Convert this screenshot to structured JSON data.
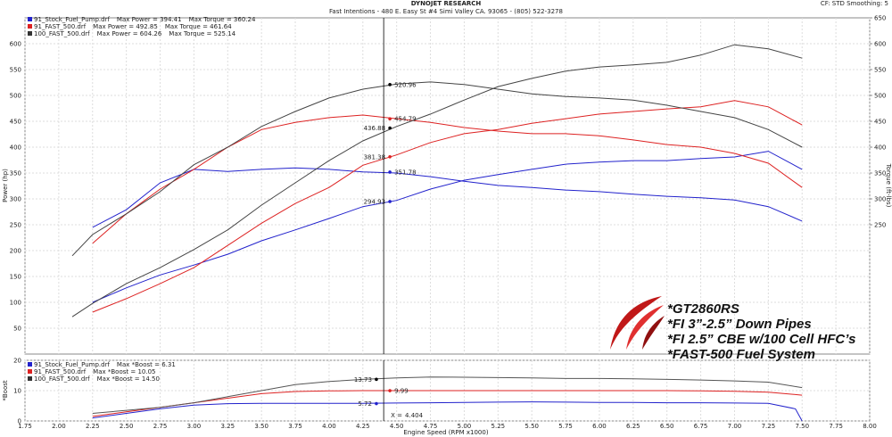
{
  "header": {
    "title": "DYNOJET RESEARCH",
    "address": "Fast Intentions - 480 E. Easy St #4 Simi Valley CA. 93065 - (805) 522-3278",
    "settings": "CF: STD  Smoothing: 5"
  },
  "notes": [
    "*GT2860RS",
    "*FI 3”-2.5” Down Pipes",
    "*FI 2.5” CBE w/100 Cell HFC’s",
    "*FAST-500 Fuel System"
  ],
  "chart_data": [
    {
      "type": "line",
      "y_label": "Power (hp)",
      "y2_label": "Torque (ft-lbs)",
      "grid": true,
      "xlim": [
        1.75,
        8
      ],
      "ylim": [
        0,
        650
      ],
      "yticks": [
        50,
        100,
        150,
        200,
        250,
        300,
        350,
        400,
        450,
        500,
        550,
        600
      ],
      "y2lim": [
        0,
        650
      ],
      "y2ticks": [
        250,
        300,
        350,
        400,
        450,
        500,
        550,
        600,
        650
      ],
      "legend": [
        {
          "name": "91_Stock_Fuel_Pump.drf",
          "color": "#2222cc",
          "power": "Max Power = 394.41",
          "torque": "Max Torque = 360.24"
        },
        {
          "name": "91_FAST_500.drf",
          "color": "#dd2222",
          "power": "Max Power = 492.85",
          "torque": "Max Torque = 461.64"
        },
        {
          "name": "100_FAST_500.drf",
          "color": "#333333",
          "power": "Max Power = 604.26",
          "torque": "Max Torque = 525.14"
        }
      ],
      "series": [
        {
          "color": "#2222cc",
          "axis": "y2",
          "x": [
            2.25,
            2.5,
            2.75,
            3,
            3.25,
            3.5,
            3.75,
            4,
            4.25,
            4.5,
            4.75,
            5,
            5.25,
            5.5,
            5.75,
            6,
            6.25,
            6.5,
            6.75,
            7,
            7.25,
            7.5
          ],
          "values": [
            245,
            279,
            331,
            357,
            353,
            357,
            360,
            357,
            352,
            350,
            343,
            334,
            326,
            322,
            317,
            314,
            309,
            305,
            302,
            298,
            285,
            257
          ]
        },
        {
          "color": "#2222cc",
          "x": [
            2.25,
            2.5,
            2.75,
            3,
            3.25,
            3.5,
            3.75,
            4,
            4.25,
            4.5,
            4.75,
            5,
            5.25,
            5.5,
            5.75,
            6,
            6.25,
            6.5,
            6.75,
            7,
            7.25,
            7.5
          ],
          "values": [
            100,
            128,
            153,
            172,
            193,
            219,
            240,
            262,
            285,
            297,
            319,
            336,
            347,
            357,
            367,
            371,
            374,
            374,
            378,
            381,
            392,
            357
          ]
        },
        {
          "color": "#dd2222",
          "axis": "y2",
          "x": [
            2.25,
            2.5,
            2.75,
            3,
            3.25,
            3.5,
            3.75,
            4,
            4.25,
            4.5,
            4.75,
            5,
            5.25,
            5.5,
            5.75,
            6,
            6.25,
            6.5,
            6.75,
            7,
            7.25,
            7.5
          ],
          "values": [
            214,
            271,
            319,
            357,
            400,
            434,
            448,
            457,
            462,
            455,
            448,
            438,
            431,
            426,
            426,
            422,
            414,
            405,
            400,
            388,
            369,
            322
          ]
        },
        {
          "color": "#dd2222",
          "x": [
            2.25,
            2.5,
            2.75,
            3,
            3.25,
            3.5,
            3.75,
            4,
            4.25,
            4.5,
            4.75,
            5,
            5.25,
            5.5,
            5.75,
            6,
            6.25,
            6.5,
            6.75,
            7,
            7.25,
            7.5
          ],
          "values": [
            81,
            107,
            136,
            167,
            210,
            253,
            291,
            322,
            365,
            385,
            409,
            426,
            434,
            446,
            455,
            464,
            469,
            474,
            478,
            490,
            478,
            443
          ]
        },
        {
          "color": "#444444",
          "axis": "y2",
          "x": [
            2.1,
            2.25,
            2.5,
            2.75,
            3,
            3.25,
            3.5,
            3.75,
            4,
            4.25,
            4.5,
            4.75,
            5,
            5.25,
            5.5,
            5.75,
            6,
            6.25,
            6.5,
            6.75,
            7,
            7.25,
            7.5
          ],
          "values": [
            190,
            231,
            271,
            314,
            366,
            400,
            440,
            469,
            495,
            512,
            522,
            526,
            521,
            512,
            503,
            498,
            495,
            491,
            481,
            469,
            457,
            434,
            400
          ]
        },
        {
          "color": "#444444",
          "x": [
            2.1,
            2.25,
            2.5,
            2.75,
            3,
            3.25,
            3.5,
            3.75,
            4,
            4.25,
            4.5,
            4.75,
            5,
            5.25,
            5.5,
            5.75,
            6,
            6.25,
            6.5,
            6.75,
            7,
            7.25,
            7.5
          ],
          "values": [
            72,
            98,
            136,
            167,
            202,
            240,
            288,
            331,
            374,
            412,
            440,
            464,
            491,
            517,
            533,
            547,
            555,
            559,
            564,
            578,
            598,
            590,
            572
          ]
        }
      ],
      "markers": [
        {
          "x": 4.45,
          "y": 520.96,
          "color": "#000000"
        },
        {
          "x": 4.45,
          "y": 454.79,
          "color": "#dd2222"
        },
        {
          "x": 4.45,
          "y": 436.88,
          "color": "#000000"
        },
        {
          "x": 4.45,
          "y": 381.38,
          "color": "#dd2222"
        },
        {
          "x": 4.45,
          "y": 351.78,
          "color": "#2222cc"
        },
        {
          "x": 4.45,
          "y": 294.93,
          "color": "#2222cc"
        }
      ]
    },
    {
      "type": "line",
      "y_label": "*Boost",
      "x_label": "Engine Speed (RPM x1000)",
      "grid": true,
      "xlim": [
        1.75,
        8
      ],
      "xticks": [
        1.75,
        {
          "value": 2,
          "label": "2.00"
        },
        2.25,
        {
          "value": 2.5,
          "label": "2.50"
        },
        2.75,
        {
          "value": 3,
          "label": "3.00"
        },
        3.25,
        {
          "value": 3.5,
          "label": "3.50"
        },
        3.75,
        {
          "value": 4,
          "label": "4.00"
        },
        4.25,
        {
          "value": 4.5,
          "label": "4.50"
        },
        4.75,
        {
          "value": 5,
          "label": "5.00"
        },
        5.25,
        {
          "value": 5.5,
          "label": "5.50"
        },
        5.75,
        {
          "value": 6,
          "label": "6.00"
        },
        6.25,
        {
          "value": 6.5,
          "label": "6.50"
        },
        6.75,
        {
          "value": 7,
          "label": "7.00"
        },
        7.25,
        {
          "value": 7.5,
          "label": "7.50"
        },
        7.75,
        {
          "value": 8,
          "label": "8.00"
        }
      ],
      "ylim": [
        0,
        20
      ],
      "yticks": [
        0,
        10,
        20
      ],
      "legend": [
        {
          "name": "91_Stock_Fuel_Pump.drf",
          "color": "#2222cc",
          "boost": "Max *Boost = 6.31"
        },
        {
          "name": "91_FAST_500.drf",
          "color": "#dd2222",
          "boost": "Max *Boost = 10.05"
        },
        {
          "name": "100_FAST_500.drf",
          "color": "#333333",
          "boost": "Max *Boost = 14.50"
        }
      ],
      "series": [
        {
          "color": "#2222cc",
          "x": [
            2.25,
            2.5,
            2.75,
            3,
            3.25,
            3.5,
            3.75,
            4,
            4.25,
            4.5,
            4.75,
            5,
            5.25,
            5.5,
            5.75,
            6,
            6.25,
            6.5,
            6.75,
            7,
            7.25,
            7.45,
            7.5
          ],
          "values": [
            1,
            2.5,
            4,
            5.2,
            5.7,
            5.8,
            5.8,
            5.8,
            5.8,
            5.9,
            6,
            6.1,
            6.2,
            6.3,
            6.2,
            6.1,
            6.1,
            6,
            6,
            5.9,
            5.8,
            4,
            0
          ]
        },
        {
          "color": "#dd2222",
          "x": [
            2.25,
            2.5,
            2.75,
            3,
            3.25,
            3.5,
            3.75,
            4,
            4.25,
            4.5,
            4.75,
            5,
            5.25,
            5.5,
            5.75,
            6,
            6.25,
            6.5,
            6.75,
            7,
            7.25,
            7.5
          ],
          "values": [
            1.5,
            3,
            4.5,
            6,
            7.5,
            9,
            9.7,
            9.9,
            10,
            10,
            10,
            10,
            10,
            10,
            10,
            10,
            10,
            10,
            9.9,
            9.8,
            9.5,
            8.5
          ]
        },
        {
          "color": "#555555",
          "x": [
            2.25,
            2.5,
            2.75,
            3,
            3.25,
            3.5,
            3.75,
            4,
            4.25,
            4.5,
            4.75,
            5,
            5.25,
            5.5,
            5.75,
            6,
            6.25,
            6.5,
            6.75,
            7,
            7.25,
            7.5
          ],
          "values": [
            2.5,
            3.5,
            4.5,
            6,
            8,
            10,
            12,
            13,
            13.7,
            14.2,
            14.5,
            14.4,
            14.3,
            14.2,
            14,
            14,
            13.9,
            13.7,
            13.5,
            13.2,
            12.8,
            11
          ]
        }
      ],
      "markers": [
        {
          "x": 4.35,
          "y": 13.73,
          "color": "#000000"
        },
        {
          "x": 4.45,
          "y": 9.99,
          "color": "#dd2222"
        },
        {
          "x": 4.35,
          "y": 5.72,
          "color": "#2222cc"
        }
      ],
      "cursor": {
        "label": "X =",
        "x": 4.404
      }
    }
  ]
}
